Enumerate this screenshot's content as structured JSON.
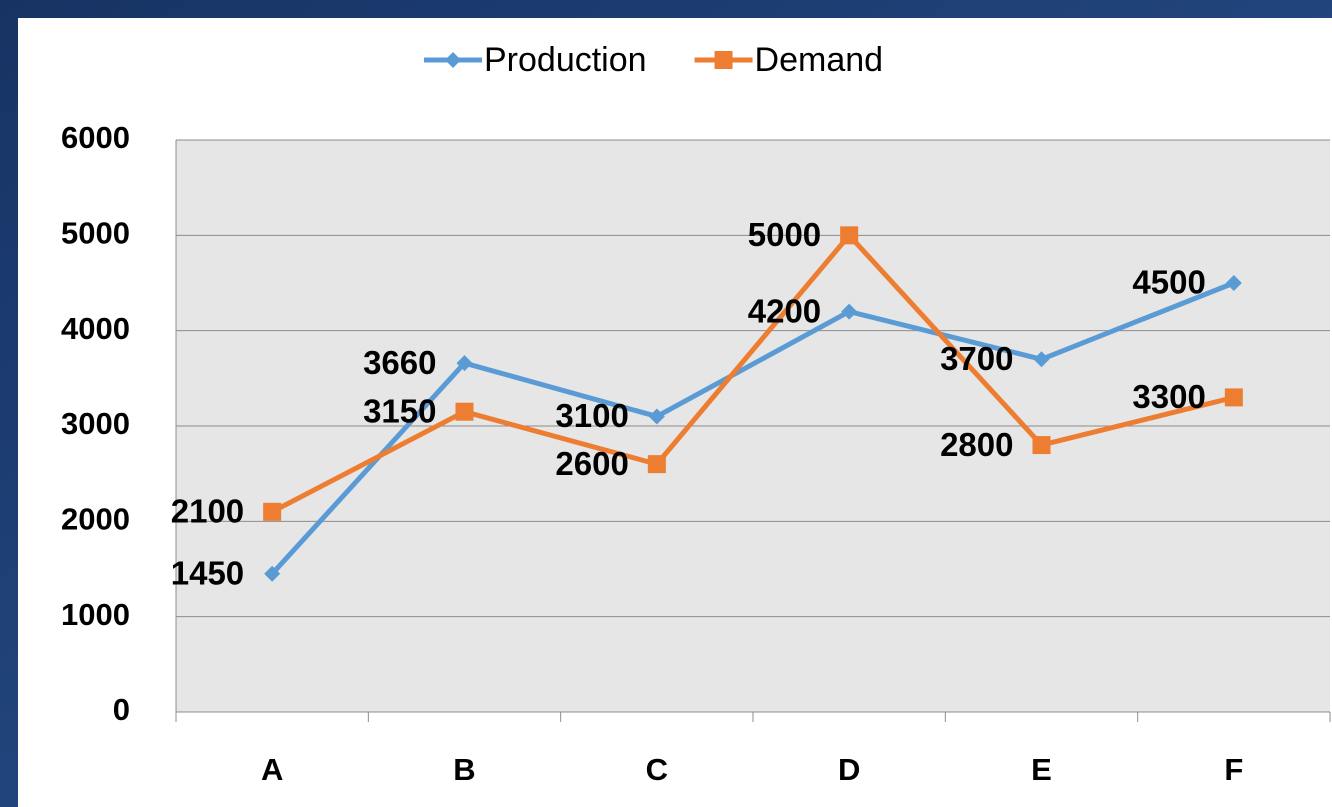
{
  "chart_data": {
    "type": "line",
    "categories": [
      "A",
      "B",
      "C",
      "D",
      "E",
      "F"
    ],
    "series": [
      {
        "name": "Production",
        "color": "#5b9bd5",
        "marker": "diamond",
        "values": [
          1450,
          3660,
          3100,
          4200,
          3700,
          4500
        ]
      },
      {
        "name": "Demand",
        "color": "#ed7d31",
        "marker": "square",
        "values": [
          2100,
          3150,
          2600,
          5000,
          2800,
          3300
        ]
      }
    ],
    "ylim": [
      0,
      6000
    ],
    "yticks": [
      0,
      1000,
      2000,
      3000,
      4000,
      5000,
      6000
    ],
    "grid": true,
    "legend": "top"
  }
}
